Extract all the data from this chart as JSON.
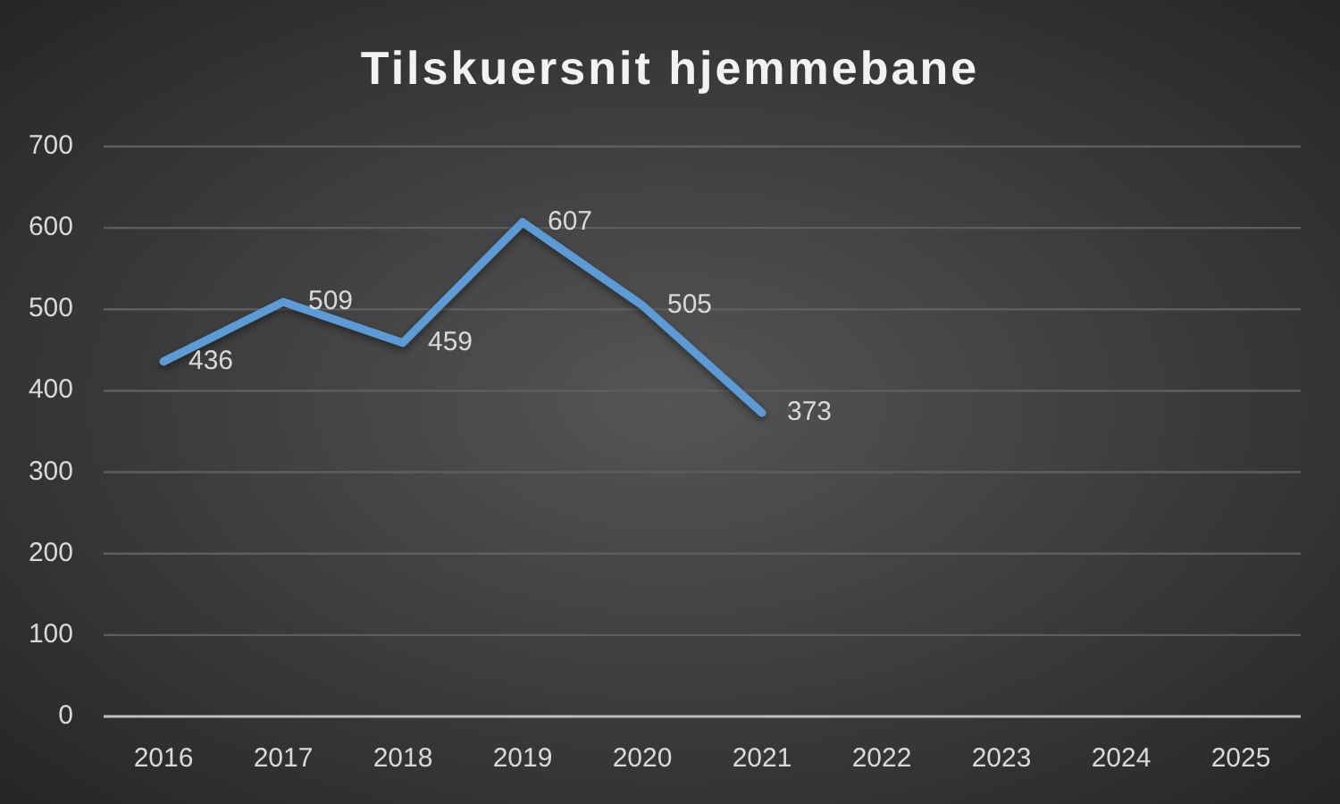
{
  "chart_data": {
    "type": "line",
    "title": "Tilskuersnit hjemmebane",
    "categories": [
      "2016",
      "2017",
      "2018",
      "2019",
      "2020",
      "2021",
      "2022",
      "2023",
      "2024",
      "2025"
    ],
    "series": [
      {
        "color": "#5b9bd5",
        "values": [
          436,
          509,
          459,
          607,
          505,
          373,
          null,
          null,
          null,
          null
        ]
      }
    ],
    "ylim": [
      0,
      700
    ],
    "yticks": [
      0,
      100,
      200,
      300,
      400,
      500,
      600,
      700
    ],
    "grid": "y",
    "data_labels": true
  }
}
